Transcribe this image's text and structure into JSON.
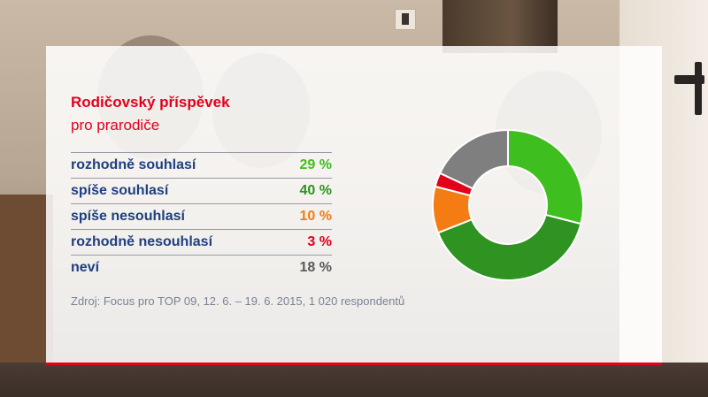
{
  "chart_data": {
    "type": "pie",
    "title": "Rodičovský příspěvek",
    "subtitle": "pro prarodiče",
    "categories": [
      "rozhodně souhlasí",
      "spíše souhlasí",
      "spíše nesouhlasí",
      "rozhodně nesouhlasí",
      "neví"
    ],
    "value_labels": [
      "29 %",
      "40 %",
      "10 %",
      "3 %",
      "18 %"
    ],
    "values": [
      29,
      40,
      10,
      3,
      18
    ],
    "colors": [
      "#3fbf1f",
      "#2e9321",
      "#f47c12",
      "#e3001b",
      "#7f7f7f"
    ],
    "source": "Zdroj: Focus pro TOP 09, 12. 6. – 19. 6. 2015, 1 020 respondentů"
  }
}
